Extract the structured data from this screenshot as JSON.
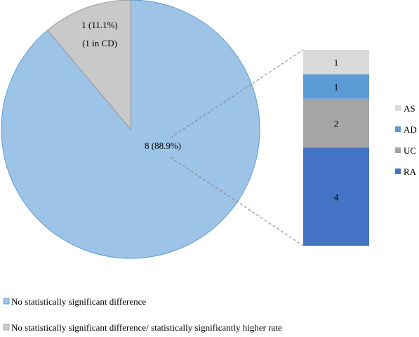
{
  "chart_data": {
    "type": "pie",
    "slices": [
      {
        "name": "No statistically significant difference",
        "value": 8,
        "label": "8 (88.9%)",
        "color": "#9dc3e6"
      },
      {
        "name": "No statistically significant difference/ statistically significantly higher rate",
        "value": 1,
        "label": "1 (11.1%)",
        "sublabel": "(1 in CD)",
        "color": "#c9c9c9"
      }
    ],
    "breakdown": {
      "type": "stacked-bar",
      "of_slice": "No statistically significant difference",
      "segments": [
        {
          "name": "AS",
          "value": 1,
          "color": "#d9d9d9"
        },
        {
          "name": "AD",
          "value": 1,
          "color": "#5b9bd5"
        },
        {
          "name": "UC",
          "value": 2,
          "color": "#a5a5a5"
        },
        {
          "name": "RA",
          "value": 4,
          "color": "#4472c4"
        }
      ]
    },
    "legend": {
      "placement": "bottom",
      "items": [
        "No statistically significant difference",
        "No statistically significant difference/ statistically significantly higher rate"
      ]
    }
  }
}
